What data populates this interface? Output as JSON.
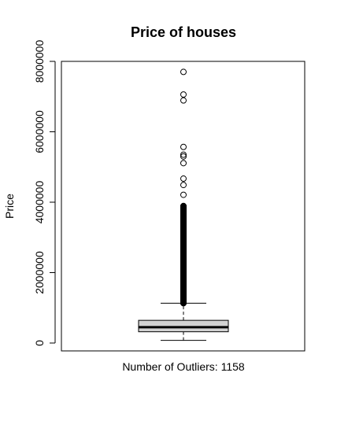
{
  "chart_data": {
    "type": "boxplot",
    "title": "Price of houses",
    "ylabel": "Price",
    "xlabel": "Number of Outliers: 1158",
    "ylim": [
      0,
      8000000
    ],
    "yticks": [
      0,
      2000000,
      4000000,
      6000000,
      8000000
    ],
    "ytick_labels": [
      "0",
      "2000000",
      "4000000",
      "6000000",
      "8000000"
    ],
    "box": {
      "whisker_low": 75000,
      "q1": 320000,
      "median": 450000,
      "q3": 645000,
      "whisker_high": 1130000
    },
    "outlier_count": 1158,
    "outliers_dense_range": [
      1130000,
      3900000
    ],
    "outliers": [
      1150000,
      1180000,
      1210000,
      1250000,
      1290000,
      1330000,
      1370000,
      1420000,
      1470000,
      1520000,
      1580000,
      1640000,
      1700000,
      1760000,
      1820000,
      1880000,
      1940000,
      2000000,
      2060000,
      2120000,
      2180000,
      2240000,
      2300000,
      2370000,
      2440000,
      2510000,
      2580000,
      2650000,
      2720000,
      2800000,
      2880000,
      2960000,
      3050000,
      3150000,
      3250000,
      3350000,
      3450000,
      3550000,
      3650000,
      3750000,
      3850000,
      4210000,
      4490000,
      4670000,
      5110000,
      5300000,
      5350000,
      5570000,
      6890000,
      7060000,
      7700000
    ]
  }
}
